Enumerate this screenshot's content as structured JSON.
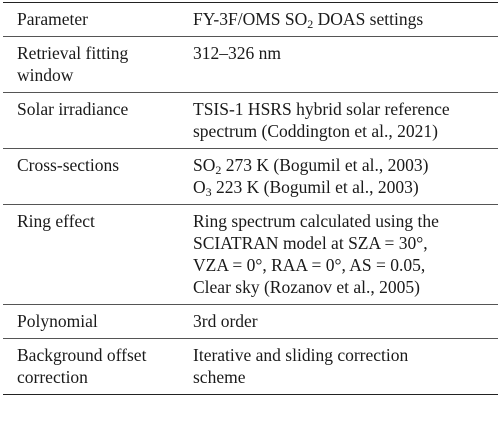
{
  "table": {
    "header": {
      "parameter": "Parameter",
      "settings": [
        [
          {
            "t": "FY-3F/OMS SO"
          },
          {
            "t": "2",
            "sub": true
          },
          {
            "t": " DOAS settings"
          }
        ]
      ]
    },
    "rows": [
      {
        "parameter": [
          "Retrieval fitting",
          "window"
        ],
        "value": [
          [
            {
              "t": "312–326 nm"
            }
          ]
        ]
      },
      {
        "parameter": [
          "Solar irradiance"
        ],
        "value": [
          [
            {
              "t": "TSIS-1 HSRS hybrid solar reference"
            }
          ],
          [
            {
              "t": "spectrum (Coddington et al., 2021)"
            }
          ]
        ]
      },
      {
        "parameter": [
          "Cross-sections"
        ],
        "value": [
          [
            {
              "t": "SO"
            },
            {
              "t": "2",
              "sub": true
            },
            {
              "t": " 273 K (Bogumil et al., 2003)"
            }
          ],
          [
            {
              "t": "O"
            },
            {
              "t": "3",
              "sub": true
            },
            {
              "t": " 223 K (Bogumil et al., 2003)"
            }
          ]
        ]
      },
      {
        "parameter": [
          "Ring effect"
        ],
        "value": [
          [
            {
              "t": "Ring spectrum calculated using the"
            }
          ],
          [
            {
              "t": "SCIATRAN model at SZA = 30°,"
            }
          ],
          [
            {
              "t": "VZA = 0°, RAA = 0°, AS = 0.05,"
            }
          ],
          [
            {
              "t": "Clear sky (Rozanov et al., 2005)"
            }
          ]
        ]
      },
      {
        "parameter": [
          "Polynomial"
        ],
        "value": [
          [
            {
              "t": "3rd order"
            }
          ]
        ]
      },
      {
        "parameter": [
          "Background offset",
          "correction"
        ],
        "value": [
          [
            {
              "t": "Iterative and sliding correction"
            }
          ],
          [
            {
              "t": "scheme"
            }
          ]
        ]
      }
    ]
  }
}
